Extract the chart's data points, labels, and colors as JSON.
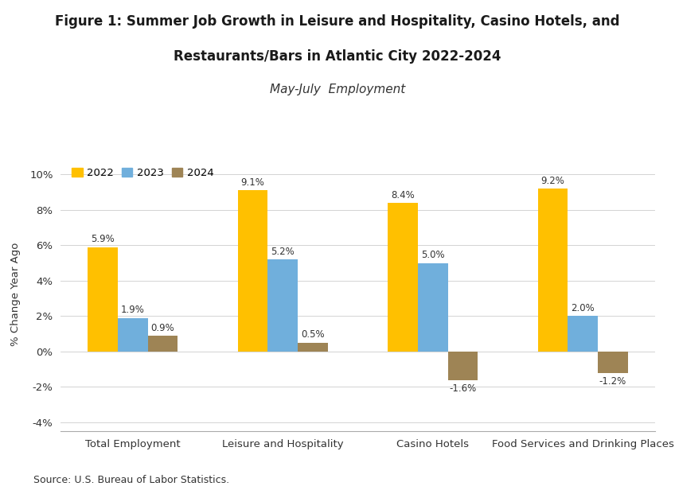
{
  "title_line1": "Figure 1: Summer Job Growth in Leisure and Hospitality, Casino Hotels, and",
  "title_line2": "Restaurants/Bars in Atlantic City 2022-2024",
  "subtitle": "May-July  Employment",
  "categories": [
    "Total Employment",
    "Leisure and Hospitality",
    "Casino Hotels",
    "Food Services and Drinking Places"
  ],
  "years": [
    "2022",
    "2023",
    "2024"
  ],
  "values": {
    "2022": [
      5.9,
      9.1,
      8.4,
      9.2
    ],
    "2023": [
      1.9,
      5.2,
      5.0,
      2.0
    ],
    "2024": [
      0.9,
      0.5,
      -1.6,
      -1.2
    ]
  },
  "colors": {
    "2022": "#FFC000",
    "2023": "#70AFDC",
    "2024": "#9E8455"
  },
  "ylabel": "% Change Year Ago",
  "ylim": [
    -4.5,
    11.0
  ],
  "yticks": [
    -4,
    -2,
    0,
    2,
    4,
    6,
    8,
    10
  ],
  "ytick_labels": [
    "-4%",
    "-2%",
    "0%",
    "2%",
    "4%",
    "6%",
    "8%",
    "10%"
  ],
  "source": "Source: U.S. Bureau of Labor Statistics.",
  "background_color": "#FFFFFF",
  "plot_bg_color": "#FFFFFF",
  "bar_width": 0.2,
  "title_fontsize": 12,
  "subtitle_fontsize": 11,
  "label_fontsize": 8.5,
  "axis_fontsize": 9.5,
  "legend_fontsize": 9.5,
  "grid_color": "#CCCCCC",
  "text_color": "#333333"
}
